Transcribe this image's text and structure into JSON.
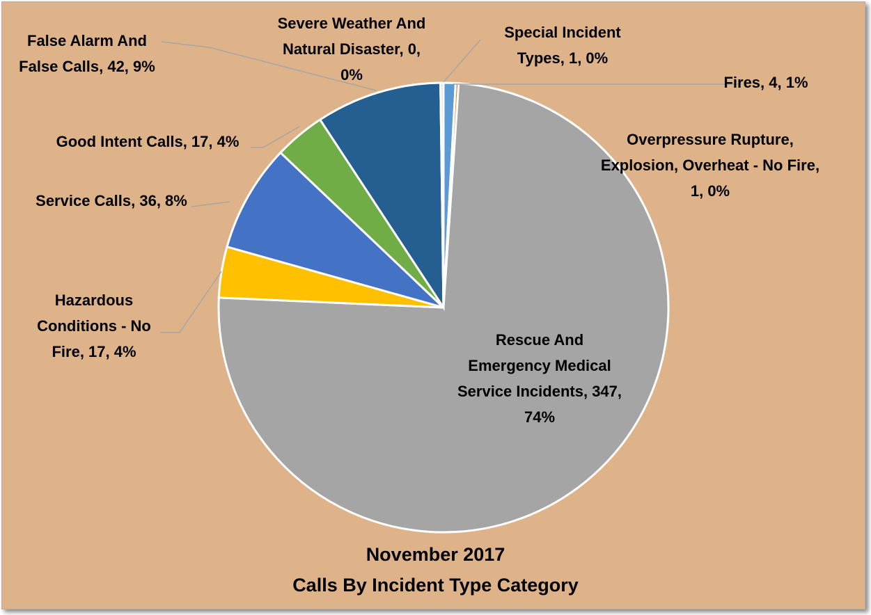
{
  "chart_data": {
    "type": "pie",
    "title": "November 2017",
    "subtitle": "Calls By Incident Type Category",
    "categories": [
      "Fires",
      "Overpressure Rupture, Explosion, Overheat - No Fire",
      "Rescue And Emergency Medical Service Incidents",
      "Hazardous Conditions - No Fire",
      "Service Calls",
      "Good Intent Calls",
      "False Alarm And False Calls",
      "Severe Weather And Natural Disaster",
      "Special Incident Types"
    ],
    "values": [
      4,
      1,
      347,
      17,
      36,
      17,
      42,
      0,
      1
    ],
    "value_labels": [
      ", 4, 1%",
      ", 1, 0%",
      ", 347, 74%",
      ", 17, 4%",
      ", 36, 8%",
      ", 17, 4%",
      ", 42, 9%",
      ", 0, 0%",
      ", 1, 0%"
    ],
    "colors": [
      "#5b9bd5",
      "#ed7d31",
      "#a5a5a5",
      "#ffc000",
      "#4472c4",
      "#70ad47",
      "#255e91",
      "#9e480e",
      "#dcdcdc"
    ]
  }
}
